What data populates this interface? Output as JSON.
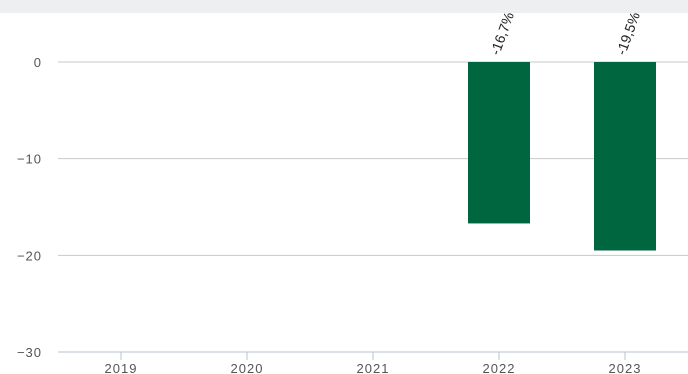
{
  "chart_data": {
    "type": "bar",
    "categories": [
      "2019",
      "2020",
      "2021",
      "2022",
      "2023"
    ],
    "values": [
      null,
      null,
      null,
      -16.7,
      -19.5
    ],
    "data_labels": [
      "",
      "",
      "",
      "-16,7%",
      "-19,5%"
    ],
    "title": "",
    "xlabel": "",
    "ylabel": "",
    "ylim": [
      -30,
      0
    ],
    "yticks": [
      0,
      -10,
      -20,
      -30
    ],
    "ytick_labels": [
      "0",
      "−10",
      "−20",
      "−30"
    ],
    "grid": true,
    "bar_color": "#00663f"
  }
}
